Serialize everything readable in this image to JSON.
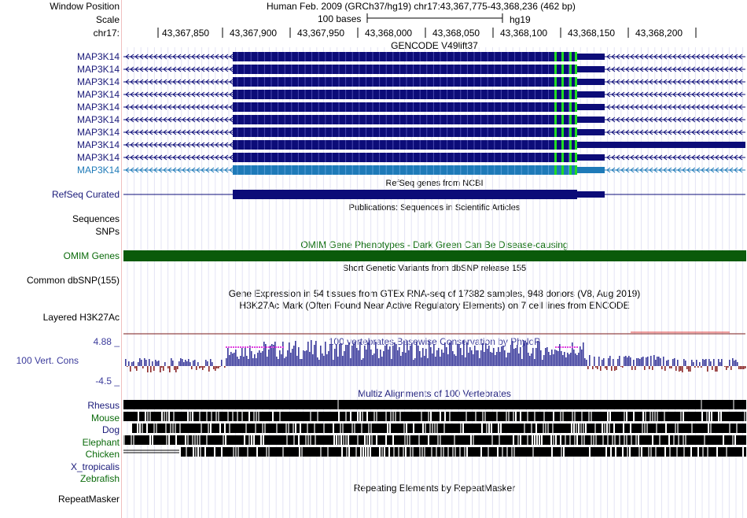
{
  "header": {
    "window_position_label": "Window Position",
    "window_position_value": "Human Feb. 2009 (GRCh37/hg19)   chr17:43,367,775-43,368,236 (462 bp)",
    "scale_label": "Scale",
    "scale_bar_text": "100 bases",
    "scale_assembly": "hg19",
    "chrom_label": "chr17:",
    "ticks": [
      "43,367,850",
      "43,367,900",
      "43,367,950",
      "43,368,000",
      "43,368,050",
      "43,368,100",
      "43,368,150",
      "43,368,200"
    ]
  },
  "gencode": {
    "title": "GENCODE V49lift37",
    "transcripts": [
      "MAP3K14",
      "MAP3K14",
      "MAP3K14",
      "MAP3K14",
      "MAP3K14",
      "MAP3K14",
      "MAP3K14",
      "MAP3K14",
      "MAP3K14",
      "MAP3K14"
    ],
    "selected_index": 9
  },
  "refseq": {
    "label": "RefSeq Curated",
    "title": "RefSeq genes from NCBI"
  },
  "publications": {
    "title": "Publications: Sequences in Scientific Articles",
    "label": "Sequences"
  },
  "snps": {
    "label": "SNPs"
  },
  "omim": {
    "title": "OMIM Gene Phenotypes - Dark Green Can Be Disease-causing",
    "label": "OMIM Genes"
  },
  "dbsnp": {
    "title": "Short Genetic Variants from dbSNP release 155",
    "label": "Common dbSNP(155)"
  },
  "gtex": {
    "title": "Gene Expression in 54 tissues from GTEx RNA-seq of 17382 samples, 948 donors (V8, Aug 2019)"
  },
  "h3k27ac": {
    "title": "H3K27Ac Mark (Often Found Near Active Regulatory Elements) on 7 cell lines from ENCODE",
    "label": "Layered H3K27Ac"
  },
  "cons": {
    "title": "100 vertebrates Basewise Conservation by PhyloP",
    "label": "100 Vert. Cons",
    "max_label": "4.88 _",
    "min_label": "-4.5 _"
  },
  "multiz": {
    "title": "Multiz Alignments of 100 Vertebrates",
    "species": [
      "Rhesus",
      "Mouse",
      "Dog",
      "Elephant",
      "Chicken",
      "X_tropicalis",
      "Zebrafish"
    ]
  },
  "repeatmasker": {
    "title": "Repeating Elements by RepeatMasker",
    "label": "RepeatMasker"
  },
  "colors": {
    "gene": "#0c0c78",
    "selected_gene": "#1e7ab8",
    "utr_green": "#22dd22",
    "omim": "#0a5a0a",
    "cons_pos": "#3c3c9c",
    "cons_neg": "#8c2828",
    "label_blue": "#1a1a7a",
    "label_green": "#0a6a0a"
  }
}
